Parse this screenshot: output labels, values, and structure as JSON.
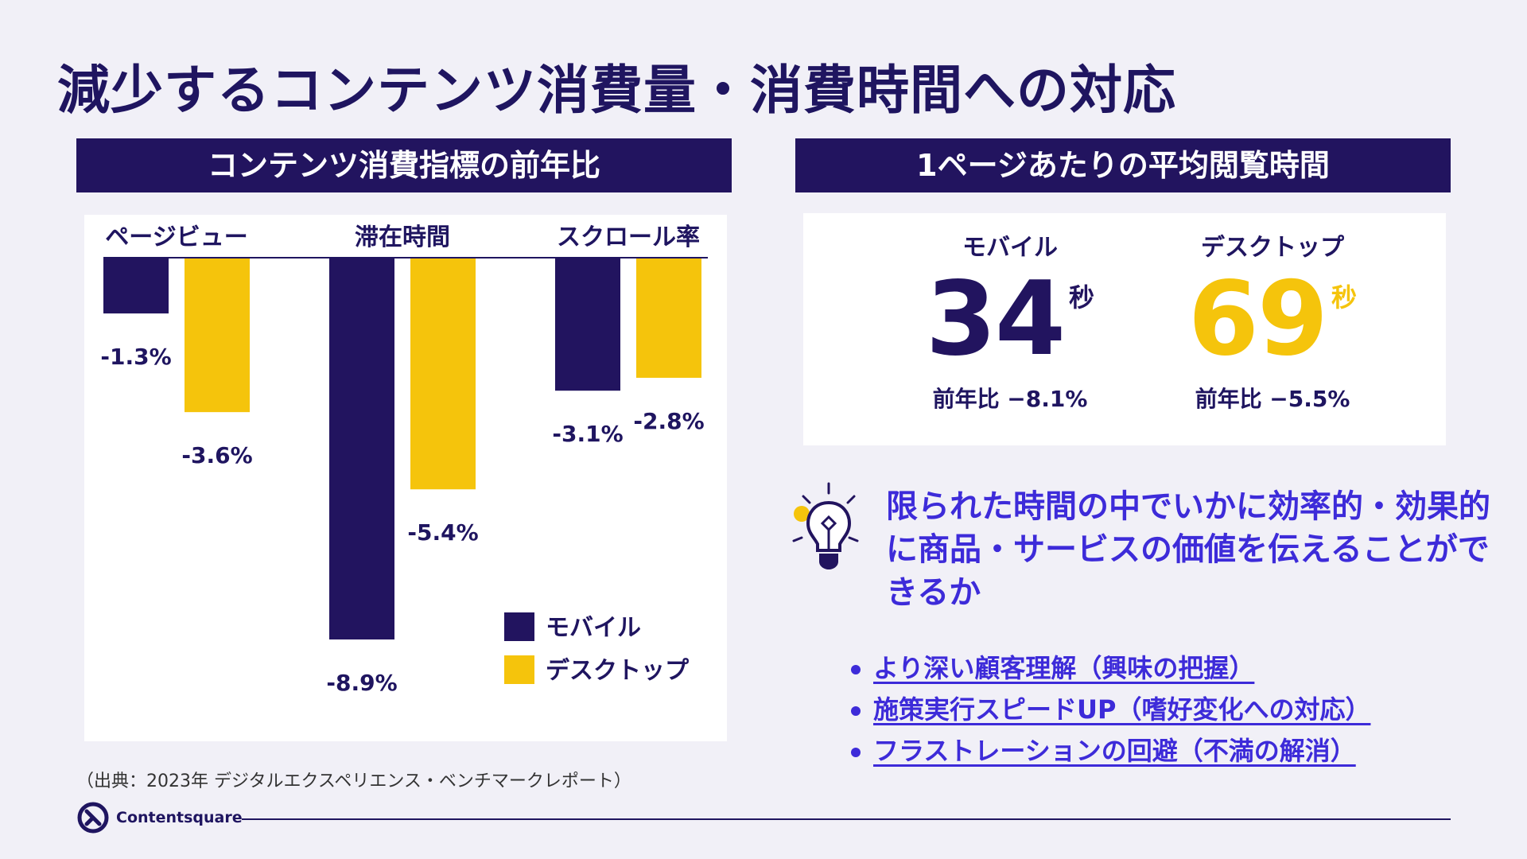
{
  "title": "減少するコンテンツ消費量・消費時間への対応",
  "left_panel": {
    "heading": "コンテンツ消費指標の前年比"
  },
  "right_panel": {
    "heading": "1ページあたりの平均閲覧時間",
    "mobile": {
      "label": "モバイル",
      "value": "34",
      "unit": "秒",
      "yoy": "前年比 −8.1%"
    },
    "desktop": {
      "label": "デスクトップ",
      "value": "69",
      "unit": "秒",
      "yoy": "前年比 −5.5%"
    }
  },
  "message": {
    "icon": "lightbulb-icon",
    "text": "限られた時間の中でいかに効率的・効果的に商品・サービスの価値を伝えることができるか"
  },
  "points": [
    {
      "text": "より深い顧客理解（興味の把握）"
    },
    {
      "text": "施策実行スピードUP（嗜好変化への対応）"
    },
    {
      "text": "フラストレーションの回避（不満の解消）"
    }
  ],
  "source": "（出典：2023年 デジタルエクスペリエンス・ベンチマークレポート）",
  "brand": "Contentsquare",
  "colors": {
    "mobile": "#22145f",
    "desktop": "#f5c40c",
    "accent": "#3d2bd9",
    "band": "#22145f"
  },
  "chart_data": {
    "type": "bar",
    "title": "コンテンツ消費指標の前年比",
    "categories": [
      "ページビュー",
      "滞在時間",
      "スクロール率"
    ],
    "series": [
      {
        "name": "モバイル",
        "values": [
          -1.3,
          -8.9,
          -3.1
        ],
        "labels": [
          "-1.3%",
          "-8.9%",
          "-3.1%"
        ]
      },
      {
        "name": "デスクトップ",
        "values": [
          -3.6,
          -5.4,
          -2.8
        ],
        "labels": [
          "-3.6%",
          "-5.4%",
          "-2.8%"
        ]
      }
    ],
    "ylim": [
      -8.9,
      0
    ],
    "legend": "bottom-right",
    "grid": false
  }
}
